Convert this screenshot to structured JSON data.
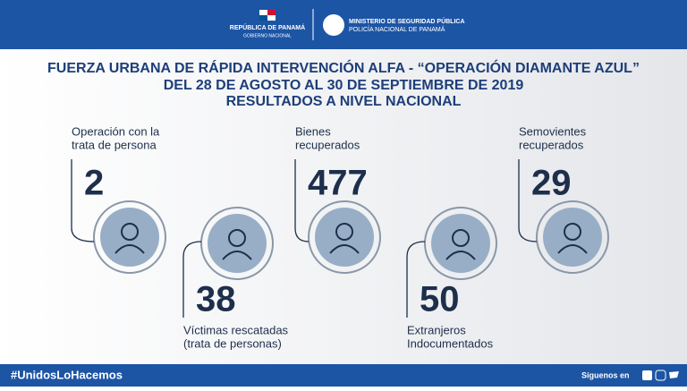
{
  "header": {
    "country": "REPÚBLICA DE PANAMÁ",
    "government": "GOBIERNO NACIONAL",
    "ministry": "MINISTERIO DE SEGURIDAD PÚBLICA",
    "police": "POLICÍA NACIONAL DE PANAMÁ"
  },
  "title": {
    "lines": [
      "FUERZA URBANA DE RÁPIDA INTERVENCIÓN ALFA - “OPERACIÓN DIAMANTE AZUL”",
      "DEL 28 DE AGOSTO AL 30 DE SEPTIEMBRE DE 2019",
      "RESULTADOS A NIVEL NACIONAL"
    ]
  },
  "stats": [
    {
      "label": [
        "Operación con la",
        "trata de persona"
      ],
      "value": "2"
    },
    {
      "label": [
        "Víctimas rescatadas",
        "(trata de personas)"
      ],
      "value": "38"
    },
    {
      "label": [
        "Bienes",
        "recuperados"
      ],
      "value": "477"
    },
    {
      "label": [
        "Extranjeros",
        "Indocumentados"
      ],
      "value": "50"
    },
    {
      "label": [
        "Semovientes",
        "recuperados"
      ],
      "value": "29"
    }
  ],
  "footer": {
    "hashtag": "#UnidosLoHacemos",
    "follow": "Síguenos en"
  }
}
